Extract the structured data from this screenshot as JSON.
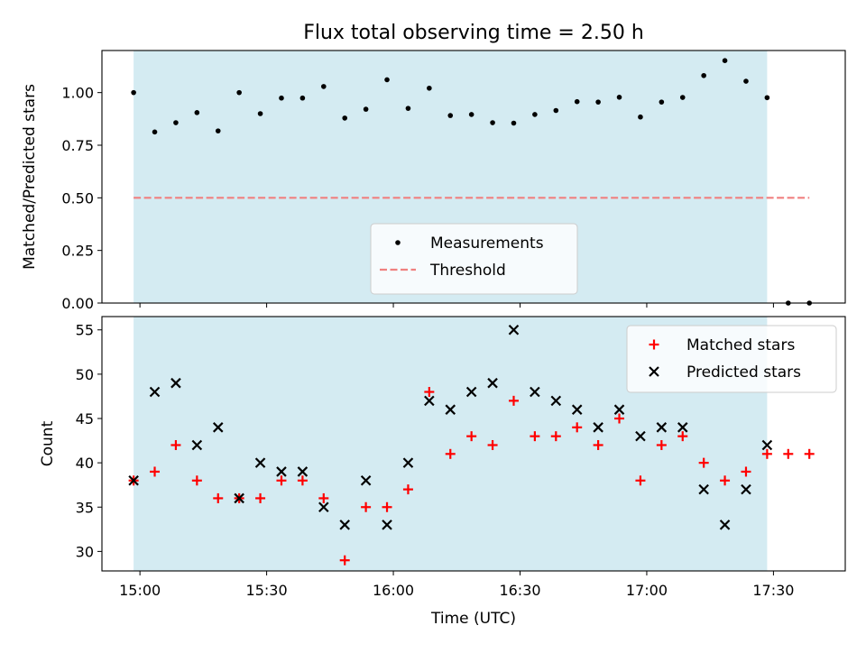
{
  "chart_data": {
    "title": "Flux total observing time = 2.50 h",
    "xlabel": "Time (UTC)",
    "x_ticks": [
      "15:00",
      "15:30",
      "16:00",
      "16:30",
      "17:00",
      "17:30"
    ],
    "x_tick_minutes": [
      0,
      30,
      60,
      90,
      120,
      150
    ],
    "xlim_minutes": [
      -9,
      167
    ],
    "observing_window_minutes": [
      -1.5,
      148.5
    ],
    "shade_color": "#add8e6",
    "panels": [
      {
        "type": "scatter",
        "ylabel": "Matched/Predicted stars",
        "ylim": [
          0,
          1.2
        ],
        "y_ticks": [
          0.0,
          0.25,
          0.5,
          0.75,
          1.0
        ],
        "y_tick_labels": [
          "0.00",
          "0.25",
          "0.50",
          "0.75",
          "1.00"
        ],
        "legend_position": "lower-center",
        "threshold": {
          "name": "Threshold",
          "value": 0.5,
          "x_range": [
            -1.5,
            158.5
          ],
          "color": "#f08080"
        },
        "series": [
          {
            "name": "Measurements",
            "marker": "dot",
            "color": "#000000",
            "x": [
              -1.5,
              3.5,
              8.5,
              13.5,
              18.5,
              23.5,
              28.5,
              33.5,
              38.5,
              43.5,
              48.5,
              53.5,
              58.5,
              63.5,
              68.5,
              73.5,
              78.5,
              83.5,
              88.5,
              93.5,
              98.5,
              103.5,
              108.5,
              113.5,
              118.5,
              123.5,
              128.5,
              133.5,
              138.5,
              143.5,
              148.5,
              153.5,
              158.5
            ],
            "y": [
              1.0,
              0.813,
              0.857,
              0.905,
              0.818,
              1.0,
              0.9,
              0.974,
              0.974,
              1.029,
              0.879,
              0.921,
              1.061,
              0.925,
              1.021,
              0.891,
              0.896,
              0.857,
              0.855,
              0.896,
              0.915,
              0.957,
              0.955,
              0.978,
              0.884,
              0.955,
              0.977,
              1.081,
              1.152,
              1.054,
              0.976,
              0.0,
              0.0
            ]
          }
        ]
      },
      {
        "type": "scatter",
        "ylabel": "Count",
        "ylim": [
          27.8,
          56.5
        ],
        "y_ticks": [
          30,
          35,
          40,
          45,
          50,
          55
        ],
        "y_tick_labels": [
          "30",
          "35",
          "40",
          "45",
          "50",
          "55"
        ],
        "legend_position": "top-right",
        "series": [
          {
            "name": "Matched stars",
            "marker": "plus",
            "color": "#ff0000",
            "x": [
              -1.5,
              3.5,
              8.5,
              13.5,
              18.5,
              23.5,
              28.5,
              33.5,
              38.5,
              43.5,
              48.5,
              53.5,
              58.5,
              63.5,
              68.5,
              73.5,
              78.5,
              83.5,
              88.5,
              93.5,
              98.5,
              103.5,
              108.5,
              113.5,
              118.5,
              123.5,
              128.5,
              133.5,
              138.5,
              143.5,
              148.5,
              153.5,
              158.5
            ],
            "y": [
              38,
              39,
              42,
              38,
              36,
              36,
              36,
              38,
              38,
              36,
              29,
              35,
              35,
              37,
              48,
              41,
              43,
              42,
              47,
              43,
              43,
              44,
              42,
              45,
              38,
              42,
              43,
              40,
              38,
              39,
              41,
              41,
              41
            ]
          },
          {
            "name": "Predicted stars",
            "marker": "cross",
            "color": "#000000",
            "x": [
              -1.5,
              3.5,
              8.5,
              13.5,
              18.5,
              23.5,
              28.5,
              33.5,
              38.5,
              43.5,
              48.5,
              53.5,
              58.5,
              63.5,
              68.5,
              73.5,
              78.5,
              83.5,
              88.5,
              93.5,
              98.5,
              103.5,
              108.5,
              113.5,
              118.5,
              123.5,
              128.5,
              133.5,
              138.5,
              143.5,
              148.5
            ],
            "y": [
              38,
              48,
              49,
              42,
              44,
              36,
              40,
              39,
              39,
              35,
              33,
              38,
              33,
              40,
              47,
              46,
              48,
              49,
              55,
              48,
              47,
              46,
              44,
              46,
              43,
              44,
              44,
              37,
              33,
              37,
              42
            ]
          }
        ]
      }
    ]
  }
}
